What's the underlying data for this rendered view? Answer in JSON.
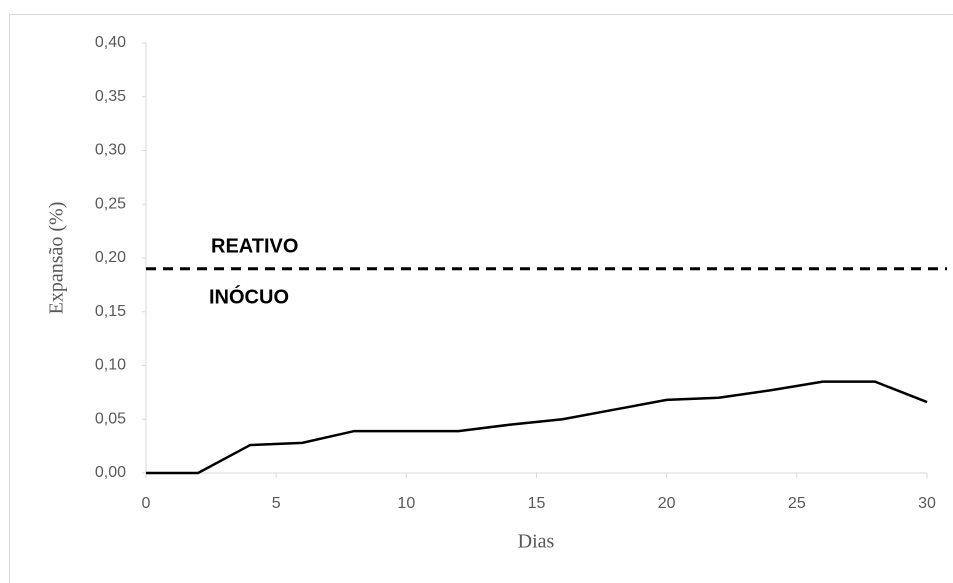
{
  "chart_data": {
    "type": "line",
    "x": [
      0,
      2,
      4,
      6,
      8,
      10,
      12,
      14,
      16,
      18,
      20,
      22,
      24,
      26,
      28,
      30
    ],
    "values": [
      0,
      0,
      0.026,
      0.028,
      0.039,
      0.039,
      0.039,
      0.045,
      0.05,
      0.059,
      0.068,
      0.07,
      0.077,
      0.085,
      0.085,
      0.066
    ],
    "color": "#000000",
    "x_label": "Dias",
    "y_label": "Expansão (%)",
    "xlim": [
      0,
      30
    ],
    "xticks": [
      0,
      5,
      10,
      15,
      20,
      25,
      30
    ],
    "ylim": [
      0,
      0.4
    ],
    "yticks": [
      {
        "value": 0,
        "label": "0,00"
      },
      {
        "value": 0.05,
        "label": "0,05"
      },
      {
        "value": 0.1,
        "label": "0,10"
      },
      {
        "value": 0.15,
        "label": "0,15"
      },
      {
        "value": 0.2,
        "label": "0,20"
      },
      {
        "value": 0.25,
        "label": "0,25"
      },
      {
        "value": 0.3,
        "label": "0,30"
      },
      {
        "value": 0.35,
        "label": "0,35"
      },
      {
        "value": 0.4,
        "label": "0,40"
      }
    ],
    "threshold": 0.19,
    "annotations": [
      "REATIVO",
      "INÓCUO"
    ],
    "grid": false
  }
}
